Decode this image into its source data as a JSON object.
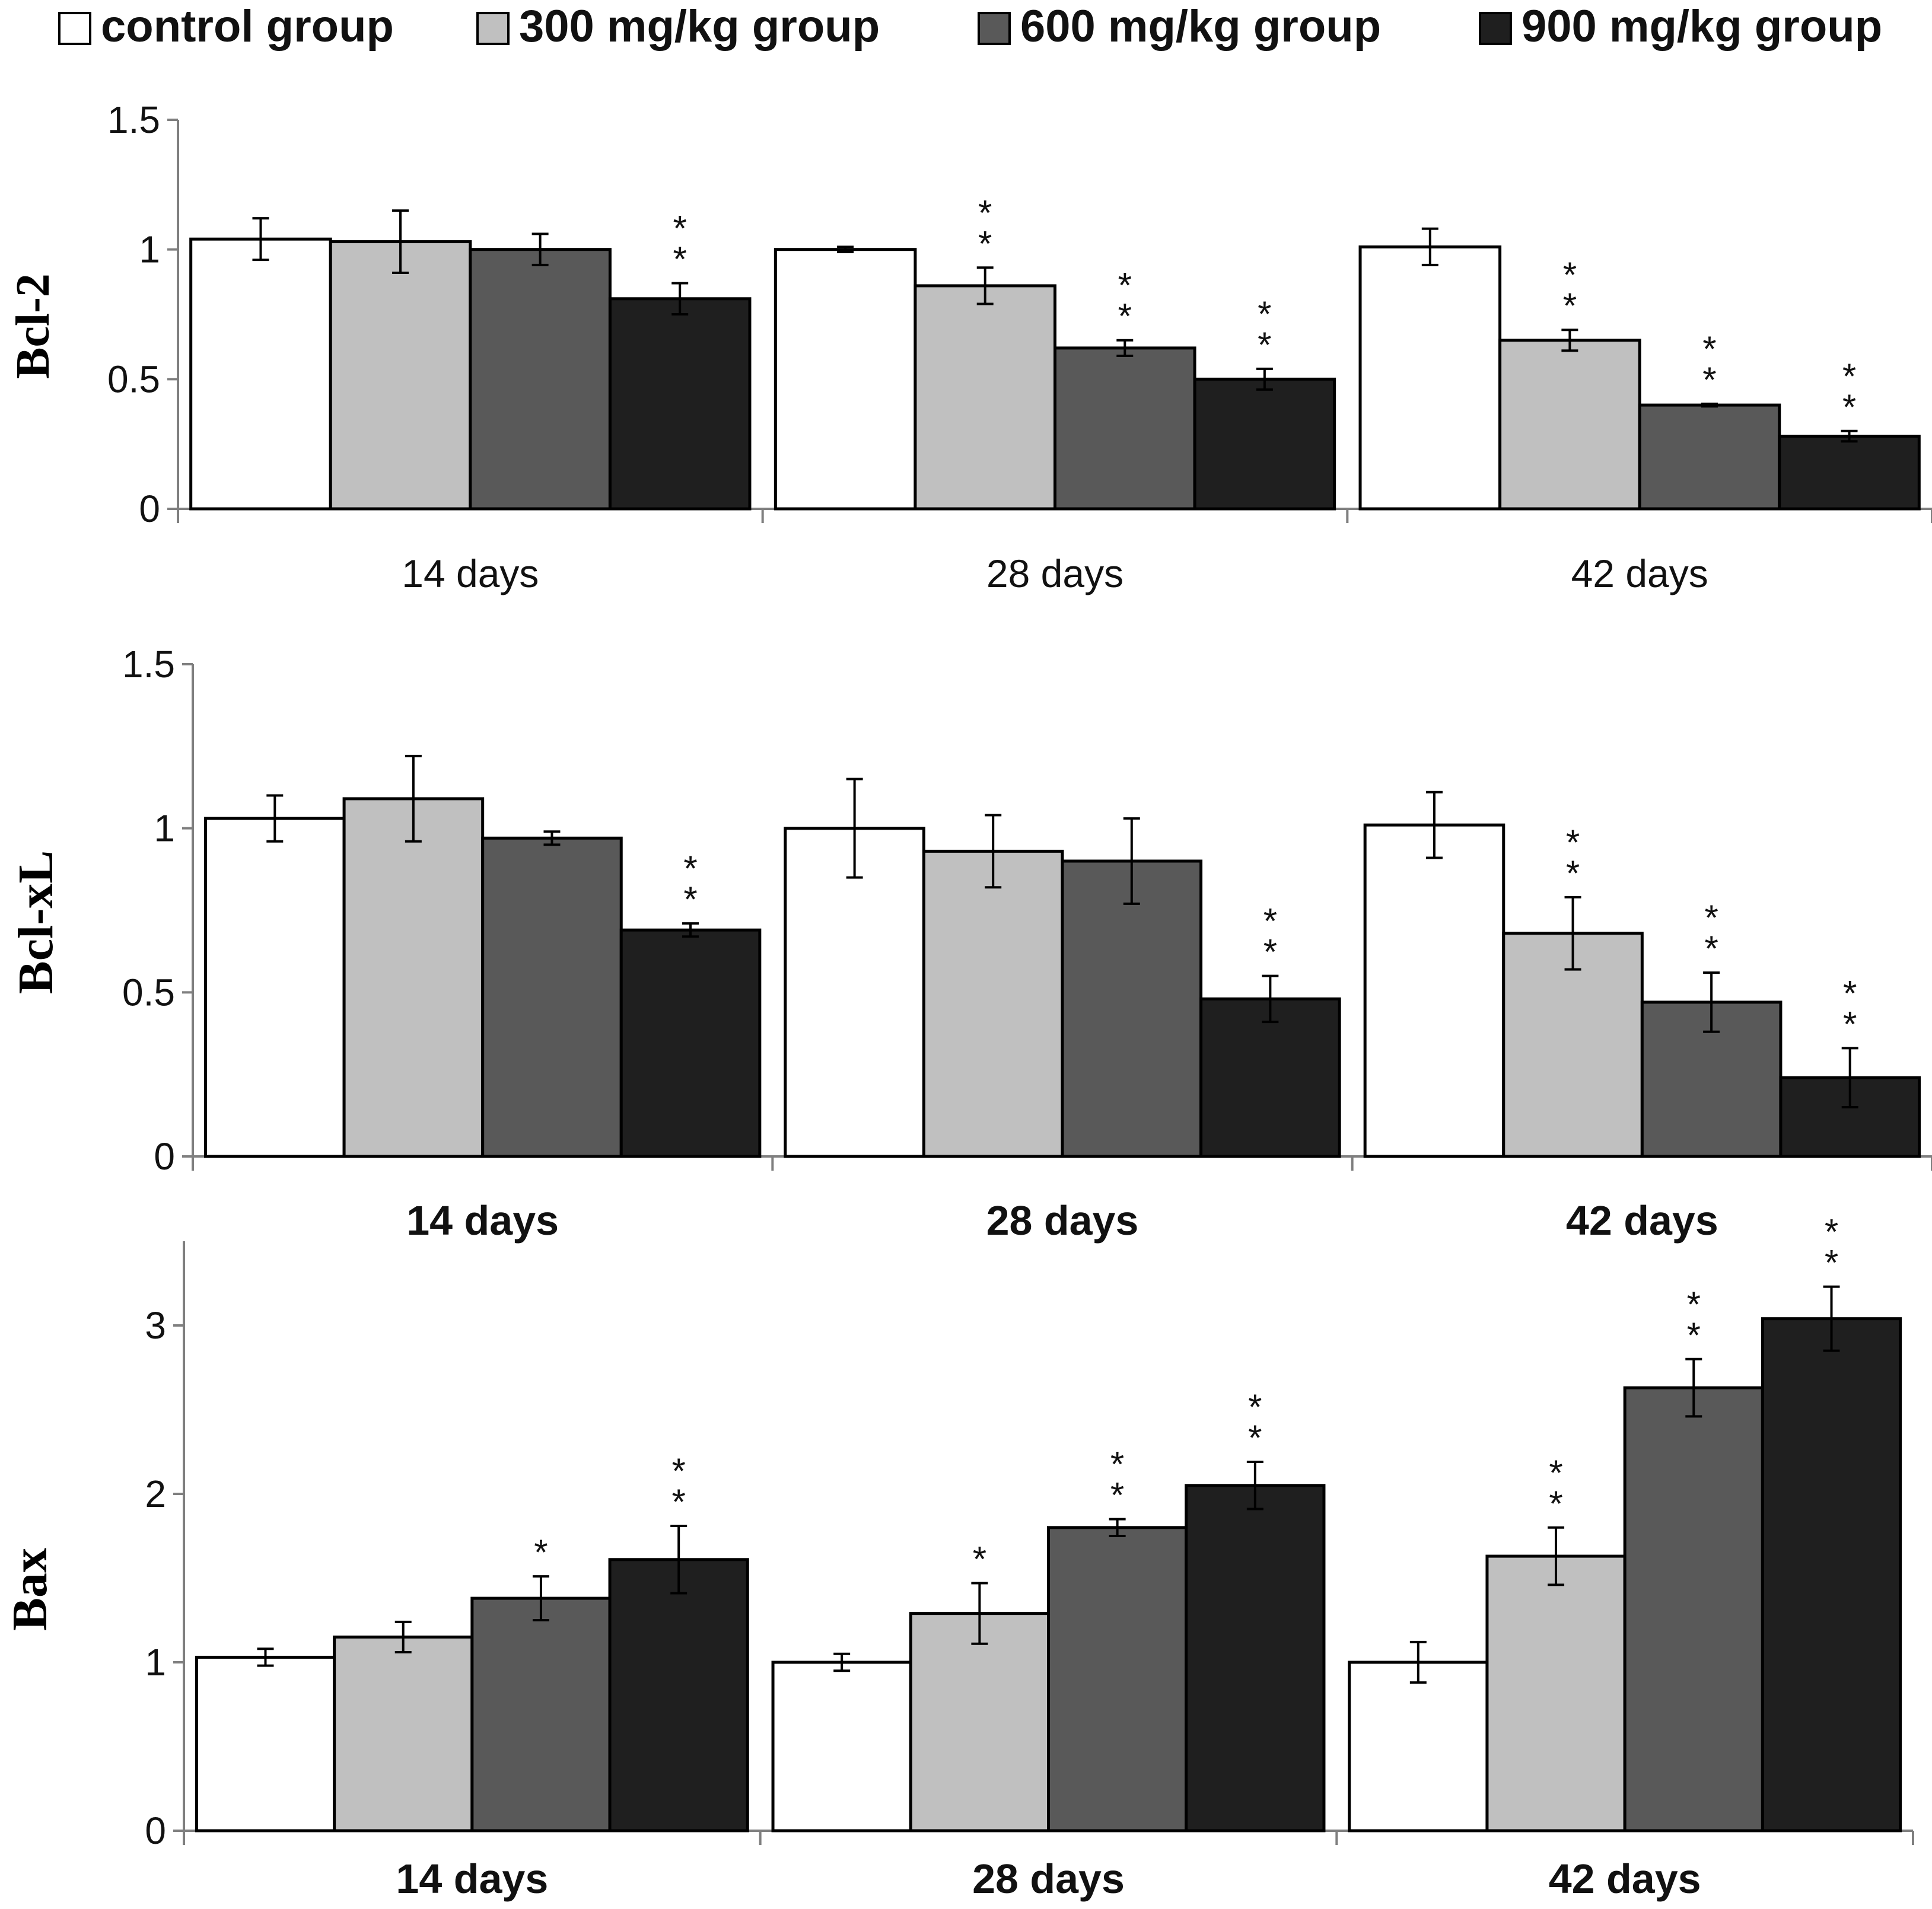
{
  "legend": [
    {
      "label": "control group",
      "color": "#ffffff"
    },
    {
      "label": "300 mg/kg group",
      "color": "#c0c0c0"
    },
    {
      "label": "600 mg/kg group",
      "color": "#595959"
    },
    {
      "label": "900 mg/kg group",
      "color": "#1f1f1f"
    }
  ],
  "chart_data": [
    {
      "type": "bar",
      "title": "",
      "xlabel": "",
      "ylabel": "Bcl-2",
      "ylim": [
        0,
        1.5
      ],
      "yticks": [
        "0",
        "0.5",
        "1",
        "1.5"
      ],
      "categories": [
        "14 days",
        "28 days",
        "42 days"
      ],
      "category_bold": false,
      "series": [
        {
          "name": "control group",
          "values": [
            1.04,
            1.0,
            1.01
          ],
          "errors": [
            0.08,
            0.01,
            0.07
          ],
          "marks": [
            "",
            "",
            ""
          ]
        },
        {
          "name": "300 mg/kg group",
          "values": [
            1.03,
            0.86,
            0.65
          ],
          "errors": [
            0.12,
            0.07,
            0.04
          ],
          "marks": [
            "",
            "**",
            "**"
          ]
        },
        {
          "name": "600 mg/kg group",
          "values": [
            1.0,
            0.62,
            0.4
          ],
          "errors": [
            0.06,
            0.03,
            0.005
          ],
          "marks": [
            "",
            "**",
            "**"
          ]
        },
        {
          "name": "900 mg/kg group",
          "values": [
            0.81,
            0.5,
            0.28
          ],
          "errors": [
            0.06,
            0.04,
            0.02
          ],
          "marks": [
            "**",
            "**",
            "**"
          ]
        }
      ]
    },
    {
      "type": "bar",
      "title": "",
      "xlabel": "",
      "ylabel": "Bcl-xL",
      "ylim": [
        0,
        1.5
      ],
      "yticks": [
        "0",
        "0.5",
        "1",
        "1.5"
      ],
      "categories": [
        "14 days",
        "28 days",
        "42 days"
      ],
      "category_bold": true,
      "series": [
        {
          "name": "control group",
          "values": [
            1.03,
            1.0,
            1.01
          ],
          "errors": [
            0.07,
            0.15,
            0.1
          ],
          "marks": [
            "",
            "",
            ""
          ]
        },
        {
          "name": "300 mg/kg group",
          "values": [
            1.09,
            0.93,
            0.68
          ],
          "errors": [
            0.13,
            0.11,
            0.11
          ],
          "marks": [
            "",
            "",
            "**"
          ]
        },
        {
          "name": "600 mg/kg group",
          "values": [
            0.97,
            0.9,
            0.47
          ],
          "errors": [
            0.02,
            0.13,
            0.09
          ],
          "marks": [
            "",
            "",
            "**"
          ]
        },
        {
          "name": "900 mg/kg group",
          "values": [
            0.69,
            0.48,
            0.24
          ],
          "errors": [
            0.02,
            0.07,
            0.09
          ],
          "marks": [
            "**",
            "**",
            "**"
          ]
        }
      ]
    },
    {
      "type": "bar",
      "title": "",
      "xlabel": "",
      "ylabel": "Bax",
      "ylim": [
        0,
        3.5
      ],
      "yticks": [
        "0",
        "1",
        "2",
        "3"
      ],
      "categories": [
        "14 days",
        "28 days",
        "42 days"
      ],
      "category_bold": true,
      "series": [
        {
          "name": "control group",
          "values": [
            1.03,
            1.0,
            1.0
          ],
          "errors": [
            0.05,
            0.05,
            0.12
          ],
          "marks": [
            "",
            "",
            ""
          ]
        },
        {
          "name": "300 mg/kg group",
          "values": [
            1.15,
            1.29,
            1.63
          ],
          "errors": [
            0.09,
            0.18,
            0.17
          ],
          "marks": [
            "",
            "*",
            "**"
          ]
        },
        {
          "name": "600 mg/kg group",
          "values": [
            1.38,
            1.8,
            2.63
          ],
          "errors": [
            0.13,
            0.05,
            0.17
          ],
          "marks": [
            "*",
            "**",
            "**"
          ]
        },
        {
          "name": "900 mg/kg group",
          "values": [
            1.61,
            2.05,
            3.04
          ],
          "errors": [
            0.2,
            0.14,
            0.19
          ],
          "marks": [
            "**",
            "**",
            "**"
          ]
        }
      ]
    }
  ]
}
